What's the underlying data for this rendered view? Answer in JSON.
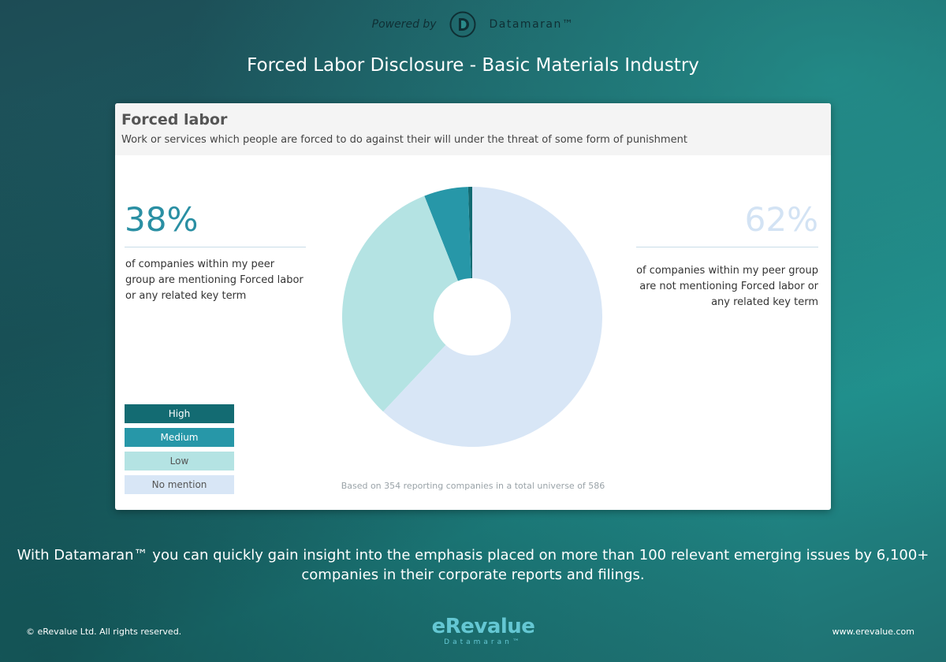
{
  "header": {
    "powered_by": "Powered by",
    "brand_name": "Datamaran™",
    "title": "Forced Labor Disclosure - Basic Materials Industry"
  },
  "card": {
    "title": "Forced labor",
    "description": "Work or services which people are forced to do against their will under the threat of some form of punishment",
    "left_pct": "38%",
    "left_text": "of companies within my peer group are mentioning Forced labor or any related key term",
    "right_pct": "62%",
    "right_text": "of companies within my peer group are not mentioning Forced labor or any related key term",
    "footnote": "Based on 354 reporting companies in a total universe of 586"
  },
  "legend": [
    {
      "label": "High",
      "color": "#136b72",
      "text_color": "#ffffff"
    },
    {
      "label": "Medium",
      "color": "#2797a8",
      "text_color": "#ffffff"
    },
    {
      "label": "Low",
      "color": "#b4e3e3",
      "text_color": "#555555"
    },
    {
      "label": "No mention",
      "color": "#d8e6f6",
      "text_color": "#555555"
    }
  ],
  "chart_data": {
    "type": "pie",
    "donut": true,
    "categories": [
      "High",
      "Medium",
      "Low",
      "No mention"
    ],
    "values": [
      0.5,
      5.5,
      32,
      62
    ],
    "unit": "%",
    "colors": [
      "#136b72",
      "#2797a8",
      "#b4e3e3",
      "#d8e6f6"
    ]
  },
  "footer": {
    "tagline": "With Datamaran™ you can quickly gain insight into the emphasis placed on more than 100 relevant emerging issues by 6,100+ companies in their corporate reports and filings.",
    "copyright": "© eRevalue Ltd. All rights reserved.",
    "website": "www.erevalue.com",
    "brand_main": "eRevalue",
    "brand_sub": "Datamaran™"
  }
}
